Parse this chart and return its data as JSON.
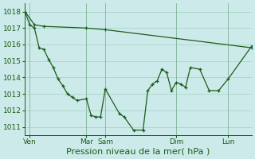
{
  "bg_color": "#cdeaea",
  "grid_color": "#a8d5c8",
  "line_color": "#1a5c1a",
  "xlabel": "Pression niveau de la mer( hPa )",
  "xlabel_fontsize": 8,
  "tick_fontsize": 6.5,
  "ylim": [
    1010.5,
    1018.5
  ],
  "yticks": [
    1011,
    1012,
    1013,
    1014,
    1015,
    1016,
    1017,
    1018
  ],
  "xlim": [
    0,
    240
  ],
  "x_tick_positions": [
    5,
    65,
    85,
    160,
    215
  ],
  "x_tick_labels": [
    "Ven",
    "Mar",
    "Sam",
    "Dim",
    "Lun"
  ],
  "series1_x": [
    0,
    10,
    20,
    65,
    85,
    240
  ],
  "series1_y": [
    1018.0,
    1017.2,
    1017.1,
    1017.0,
    1016.9,
    1015.8
  ],
  "series2_x": [
    0,
    5,
    10,
    15,
    20,
    25,
    30,
    35,
    40,
    45,
    50,
    55,
    65,
    70,
    75,
    80,
    85,
    100,
    105,
    115,
    125,
    130,
    135,
    140,
    145,
    150,
    155,
    160,
    165,
    170,
    175,
    185,
    195,
    205,
    215,
    240
  ],
  "series2_y": [
    1018.0,
    1017.2,
    1017.0,
    1015.8,
    1015.7,
    1015.1,
    1014.6,
    1013.9,
    1013.5,
    1013.0,
    1012.8,
    1012.6,
    1012.7,
    1011.7,
    1011.6,
    1011.6,
    1013.3,
    1011.8,
    1011.6,
    1010.8,
    1010.8,
    1013.2,
    1013.6,
    1013.8,
    1014.5,
    1014.3,
    1013.2,
    1013.7,
    1013.6,
    1013.4,
    1014.6,
    1014.5,
    1013.2,
    1013.2,
    1013.9,
    1015.9
  ]
}
